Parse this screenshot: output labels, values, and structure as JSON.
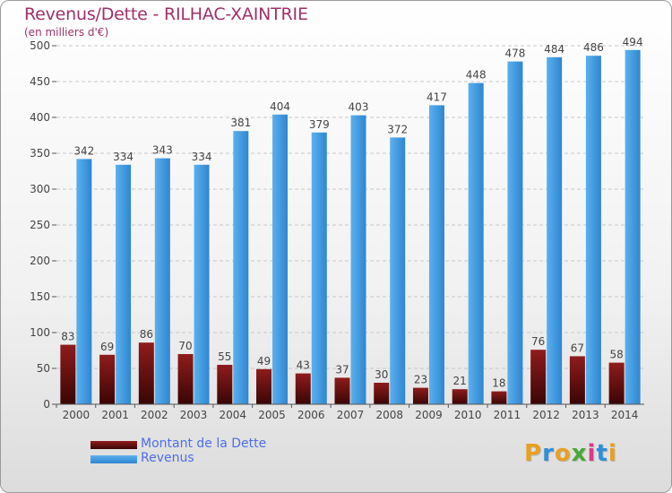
{
  "title": "Revenus/Dette - RILHAC-XAINTRIE",
  "subtitle": "(en milliers d'€)",
  "logo": {
    "letters": [
      "P",
      "r",
      "o",
      "x",
      "i",
      "t",
      "i"
    ],
    "colors": [
      "#e8a020",
      "#2f8fd8",
      "#e8a020",
      "#4aa838",
      "#d83a8a",
      "#2f8fd8",
      "#e8a020"
    ]
  },
  "chart_data": {
    "type": "bar",
    "categories": [
      "2000",
      "2001",
      "2002",
      "2003",
      "2004",
      "2005",
      "2006",
      "2007",
      "2008",
      "2009",
      "2010",
      "2011",
      "2012",
      "2013",
      "2014"
    ],
    "series": [
      {
        "name": "Montant de la Dette",
        "color": "#7a1414",
        "values": [
          83,
          69,
          86,
          70,
          55,
          49,
          43,
          37,
          30,
          23,
          21,
          18,
          76,
          67,
          58
        ]
      },
      {
        "name": "Revenus",
        "color": "#3d9be0",
        "values": [
          342,
          334,
          343,
          334,
          381,
          404,
          379,
          403,
          372,
          417,
          448,
          478,
          484,
          486,
          494
        ]
      }
    ],
    "ylim": [
      0,
      500
    ],
    "yticks": [
      0,
      50,
      100,
      150,
      200,
      250,
      300,
      350,
      400,
      450,
      500
    ],
    "grid": true,
    "legend": "bottom-left"
  }
}
